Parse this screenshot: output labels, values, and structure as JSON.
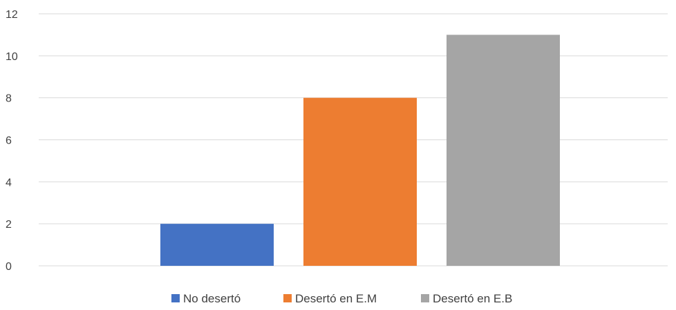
{
  "chart_data": {
    "type": "bar",
    "title": "",
    "xlabel": "",
    "ylabel": "",
    "ylim": [
      0,
      12
    ],
    "yticks": [
      0,
      2,
      4,
      6,
      8,
      10,
      12
    ],
    "grid": true,
    "legend_position": "bottom",
    "categories": [
      ""
    ],
    "series": [
      {
        "name": "No desertó",
        "values": [
          2
        ],
        "color": "#4472C4"
      },
      {
        "name": "Desertó en E.M",
        "values": [
          8
        ],
        "color": "#ED7D31"
      },
      {
        "name": "Desertó en E.B",
        "values": [
          11
        ],
        "color": "#A5A5A5"
      }
    ]
  }
}
